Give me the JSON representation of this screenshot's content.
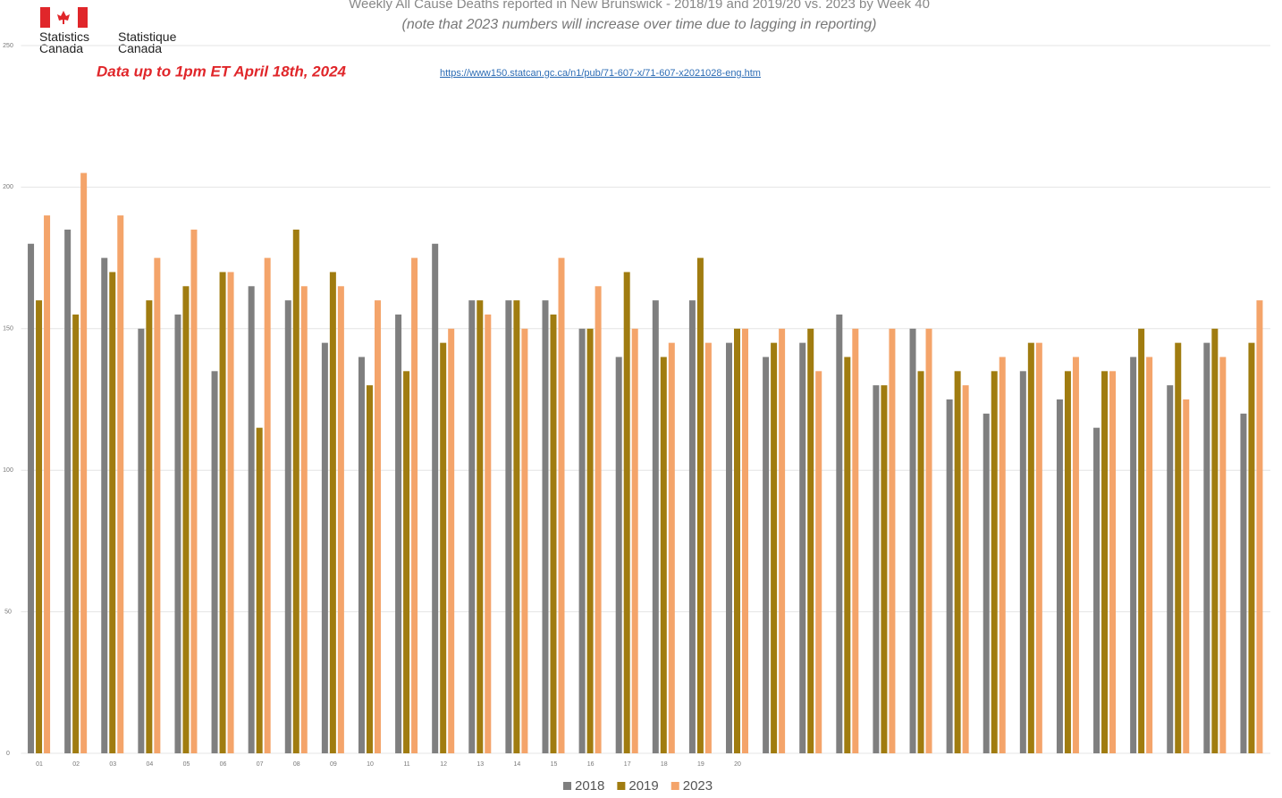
{
  "chart_data": {
    "type": "bar",
    "title": "Weekly All Cause Deaths reported in New Brunswick - 2018/19 and 2019/20 vs. 2023 by Week 40",
    "subtitle": "(note that 2023 numbers will increase over time due to lagging in reporting)",
    "annotation": "Data up to 1pm ET April 18th, 2024",
    "source_link": "https://www150.statcan.gc.ca/n1/pub/71-607-x/71-607-x2021028-eng.htm",
    "logo_text_en": "Statistics Canada",
    "logo_text_fr": "Statistique Canada",
    "categories": [
      "01",
      "02",
      "03",
      "04",
      "05",
      "06",
      "07",
      "08",
      "09",
      "10",
      "11",
      "12",
      "13",
      "14",
      "15",
      "16",
      "17",
      "18",
      "19",
      "20",
      null,
      null,
      null,
      null,
      null,
      null,
      null,
      null,
      null,
      null,
      null,
      null,
      null,
      null
    ],
    "series": [
      {
        "name": "2018",
        "color": "#7f7f7f",
        "values": [
          180,
          185,
          175,
          150,
          155,
          135,
          165,
          160,
          145,
          140,
          155,
          180,
          160,
          160,
          160,
          150,
          140,
          160,
          160,
          145,
          140,
          145,
          155,
          130,
          150,
          125,
          120,
          135,
          125,
          115,
          140,
          130,
          145,
          120
        ]
      },
      {
        "name": "2019",
        "color": "#a07c10",
        "values": [
          160,
          155,
          170,
          160,
          165,
          170,
          115,
          185,
          170,
          130,
          135,
          145,
          160,
          160,
          155,
          150,
          170,
          140,
          175,
          150,
          145,
          150,
          140,
          130,
          135,
          135,
          135,
          145,
          135,
          135,
          150,
          145,
          150,
          145
        ]
      },
      {
        "name": "2023",
        "color": "#f4a46a",
        "values": [
          190,
          205,
          190,
          175,
          185,
          170,
          175,
          165,
          165,
          160,
          175,
          150,
          155,
          150,
          175,
          165,
          150,
          145,
          145,
          150,
          150,
          135,
          150,
          150,
          150,
          130,
          140,
          145,
          140,
          135,
          140,
          125,
          140,
          160
        ]
      }
    ],
    "ylim": [
      0,
      250
    ],
    "yticks": [
      0,
      50,
      100,
      150,
      200,
      250
    ],
    "grid": true,
    "legend": "bottom"
  }
}
